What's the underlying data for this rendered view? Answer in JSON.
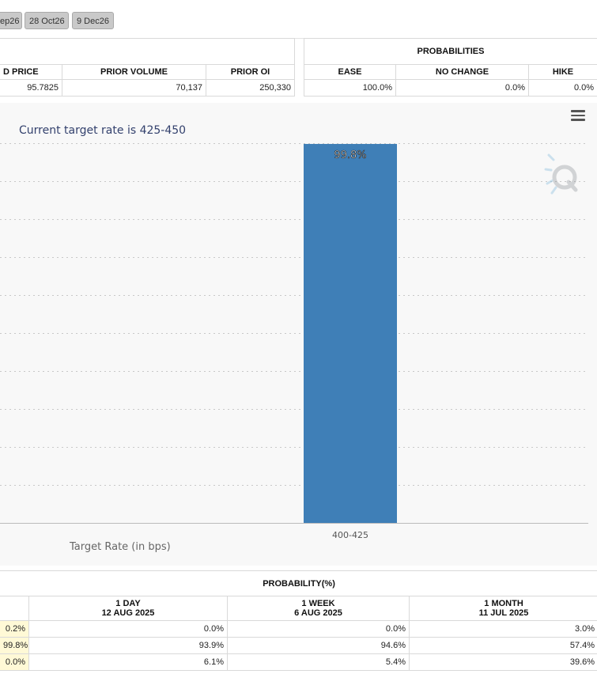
{
  "meeting_tabs": [
    {
      "label": "ep26",
      "active": false
    },
    {
      "label": "28 Oct26",
      "active": false
    },
    {
      "label": "9 Dec26",
      "active": false
    }
  ],
  "futures_table": {
    "headers": [
      "D PRICE",
      "PRIOR VOLUME",
      "PRIOR OI"
    ],
    "row": [
      "95.7825",
      "70,137",
      "250,330"
    ]
  },
  "probabilities_table": {
    "title": "PROBABILITIES",
    "headers": [
      "EASE",
      "NO CHANGE",
      "HIKE"
    ],
    "row": [
      "100.0%",
      "0.0%",
      "0.0%"
    ]
  },
  "chart_data": {
    "type": "bar",
    "title": "",
    "subtitle": "Current target rate is 425-450",
    "xlabel": "Target Rate (in bps)",
    "ylabel": "",
    "categories": [
      "400-425"
    ],
    "values": [
      99.8
    ],
    "data_labels": [
      "99.8%"
    ],
    "ylim": [
      0,
      100
    ],
    "grid": true,
    "bar_color": "#3f7fb7"
  },
  "history_table": {
    "title": "PROBABILITY(%)",
    "columns": [
      {
        "line1": "1 DAY",
        "line2": "12 AUG 2025"
      },
      {
        "line1": "1 WEEK",
        "line2": "6 AUG 2025"
      },
      {
        "line1": "1 MONTH",
        "line2": "11 JUL 2025"
      }
    ],
    "rows": [
      {
        "now": "0.2%",
        "values": [
          "0.0%",
          "0.0%",
          "3.0%"
        ]
      },
      {
        "now": "99.8%",
        "values": [
          "93.9%",
          "94.6%",
          "57.4%"
        ]
      },
      {
        "now": "0.0%",
        "values": [
          "6.1%",
          "5.4%",
          "39.6%"
        ]
      }
    ]
  },
  "icons": {
    "menu": "hamburger-menu-icon",
    "watermark": "quikstrike-q-logo"
  }
}
